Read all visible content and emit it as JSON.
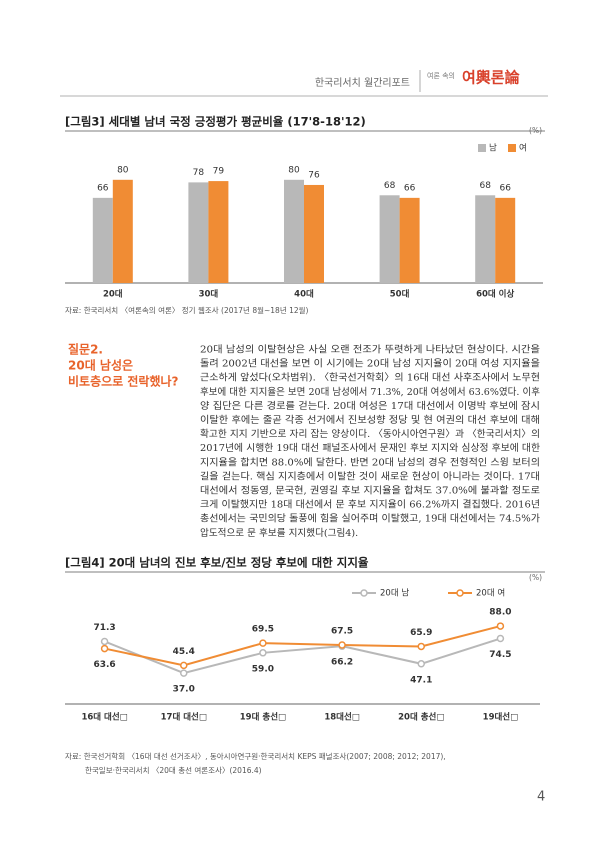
{
  "header": {
    "report": "한국리서치 월간리포트",
    "logo_small": "여론 속의",
    "logo": "여輿론論"
  },
  "chart_data": [
    {
      "type": "bar",
      "title": "[그림3] 세대별 남녀 국정 긍정평가 평균비율 (17'8-18'12)",
      "unit": "(%)",
      "categories": [
        "20대",
        "30대",
        "40대",
        "50대",
        "60대 이상"
      ],
      "series": [
        {
          "name": "남",
          "color": "#b8b8b8",
          "values": [
            66,
            78,
            80,
            68,
            68
          ]
        },
        {
          "name": "여",
          "color": "#f08c34",
          "values": [
            80,
            79,
            76,
            66,
            66
          ]
        }
      ],
      "ylim": [
        0,
        100
      ],
      "source": [
        "자료: 한국리서치 〈여론속의 여론〉 정기 웹조사 (2017년 8월~18년 12월)"
      ]
    },
    {
      "type": "line",
      "title": "[그림4] 20대 남녀의 진보 후보/진보 정당 후보에 대한 지지율",
      "unit": "(%)",
      "categories": [
        "16대 대선□",
        "17대 대선□",
        "19대 총선□",
        "18대선□",
        "20대 총선□",
        "19대선□"
      ],
      "series": [
        {
          "name": "20대 남",
          "color": "#b8b8b8",
          "values": [
            71.3,
            37,
            59,
            66.2,
            47.1,
            74.5
          ],
          "value_labels": [
            "71.3",
            "37.0",
            "59.0",
            "66.2",
            "47.1",
            "74.5"
          ]
        },
        {
          "name": "20대 여",
          "color": "#f08c34",
          "values": [
            63.6,
            45.4,
            69.5,
            67.5,
            65.9,
            88
          ],
          "value_labels": [
            "63.6",
            "45.4",
            "69.5",
            "67.5",
            "65.9",
            "88.0"
          ]
        }
      ],
      "ylim": [
        10,
        100
      ],
      "source": [
        "자료: 한국선거학회 〈16대 대선 선거조사〉, 동아시아연구원·한국리서치 KEPS 패널조사(2007; 2008; 2012; 2017),",
        "한국일보·한국리서치 〈20대 총선 여론조사〉(2016.4)"
      ]
    }
  ],
  "section": {
    "question": [
      "질문2.",
      "20대 남성은",
      "비토층으로 전락했나?"
    ],
    "body": [
      "20대 남성의 이탈현상은 사실 오랜 전조가 뚜렷하게 나타났던 현상이다. 시간을",
      "돌려 2002년 대선을 보면 이 시기에는 20대 남성 지지율이 20대 여성 지지율을",
      "근소하게 앞섰다(오차범위). 〈한국선거학회〉의 16대 대선 사후조사에서 노무현",
      "후보에 대한 지지율은 보면 20대 남성에서 71.3%, 20대 여성에서 63.6%였다. 이후",
      "양 집단은 다른 경로를 걷는다. 20대 여성은 17대 대선에서 이명박 후보에 잠시",
      "이탈한 후에는 줄곧 각종 선거에서 진보성향 정당 및 현 여권의 대선 후보에 대해",
      "확고한 지지 기반으로 자리 잡는 양상이다. 〈동아시아연구원〉과 〈한국리서치〉의",
      "2017년에 시행한 19대 대선 패널조사에서 문재인 후보 지지와 심상정 후보에 대한",
      "지지율을 합치면 88.0%에 달한다. 반면 20대 남성의 경우 전형적인 스윙 보터의",
      "길을 걷는다. 핵심 지지층에서 이탈한 것이 새로운 현상이 아니라는 것이다. 17대",
      "대선에서 정동영, 문국현, 권영길 후보 지지율을 합쳐도 37.0%에 불과할 정도로",
      "크게 이탈했지만 18대 대선에서 문 후보 지지율이 66.2%까지 결집했다. 2016년",
      "총선에서는 국민의당 돌풍에 힘을 실어주며 이탈했고, 19대 대선에서는 74.5%가",
      "압도적으로 문 후보를 지지했다(그림4)."
    ]
  },
  "page_number": "4"
}
